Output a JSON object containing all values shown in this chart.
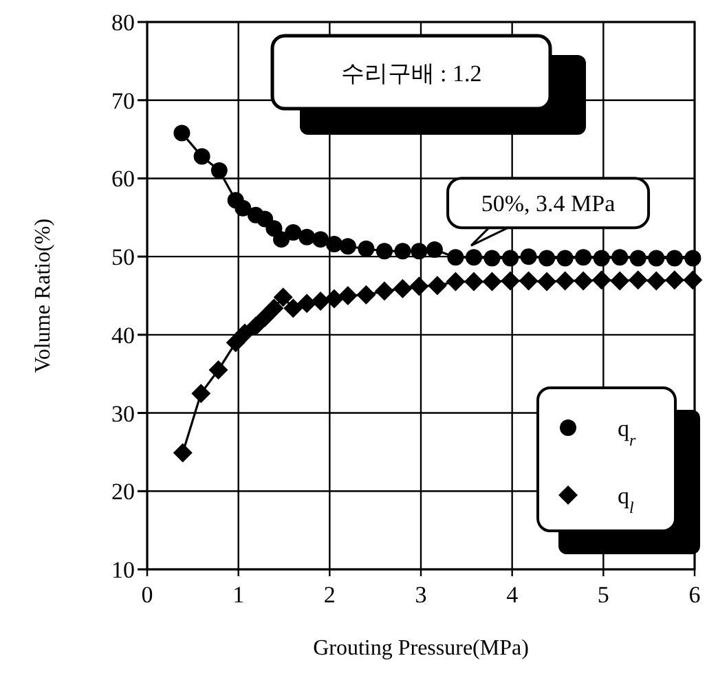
{
  "chart_data": {
    "type": "line",
    "xlabel": "Grouting Pressure(MPa)",
    "ylabel": "Volume Ratio(%)",
    "xlim": [
      0,
      6
    ],
    "ylim": [
      10,
      80
    ],
    "xticks": [
      0,
      1,
      2,
      3,
      4,
      5,
      6
    ],
    "yticks": [
      10,
      20,
      30,
      40,
      50,
      60,
      70,
      80
    ],
    "grid": true,
    "legend": "bottom right",
    "line_style": "solid",
    "annotations": [
      "수리구배 : 1.2",
      {
        "text": "50%, 3.4 MPa",
        "x": 3.4,
        "y": 50
      }
    ],
    "series": [
      {
        "name": "q$_{r}$",
        "color": "#000000",
        "marker": "circle",
        "x": [
          0.38,
          0.6,
          0.79,
          0.97,
          1.05,
          1.19,
          1.29,
          1.39,
          1.47,
          1.6,
          1.75,
          1.9,
          2.05,
          2.2,
          2.4,
          2.6,
          2.8,
          2.98,
          3.15,
          3.38,
          3.58,
          3.78,
          3.98,
          4.18,
          4.38,
          4.58,
          4.78,
          4.98,
          5.18,
          5.38,
          5.58,
          5.78,
          5.98
        ],
        "values": [
          65.8,
          62.8,
          61.0,
          57.2,
          56.2,
          55.3,
          54.8,
          53.6,
          52.2,
          53.1,
          52.5,
          52.2,
          51.6,
          51.3,
          51.0,
          50.7,
          50.7,
          50.7,
          50.9,
          49.9,
          49.9,
          49.8,
          49.8,
          50.0,
          49.8,
          49.8,
          49.9,
          49.8,
          49.9,
          49.8,
          49.8,
          49.8,
          49.8
        ]
      },
      {
        "name": "q$_{l}$",
        "color": "#000000",
        "marker": "diamond",
        "x": [
          0.39,
          0.59,
          0.78,
          0.97,
          1.07,
          1.19,
          1.29,
          1.39,
          1.49,
          1.6,
          1.75,
          1.9,
          2.05,
          2.2,
          2.4,
          2.6,
          2.8,
          2.98,
          3.18,
          3.38,
          3.58,
          3.78,
          3.98,
          4.18,
          4.38,
          4.58,
          4.78,
          4.98,
          5.18,
          5.38,
          5.58,
          5.78,
          5.98
        ],
        "values": [
          24.9,
          32.5,
          35.5,
          39.0,
          40.2,
          41.1,
          42.2,
          43.4,
          44.8,
          43.4,
          44.0,
          44.3,
          44.6,
          45.0,
          45.1,
          45.6,
          45.9,
          46.2,
          46.3,
          46.8,
          46.8,
          46.8,
          46.9,
          46.9,
          46.8,
          46.9,
          46.9,
          47.0,
          46.9,
          47.0,
          46.9,
          47.0,
          47.0
        ]
      }
    ]
  }
}
